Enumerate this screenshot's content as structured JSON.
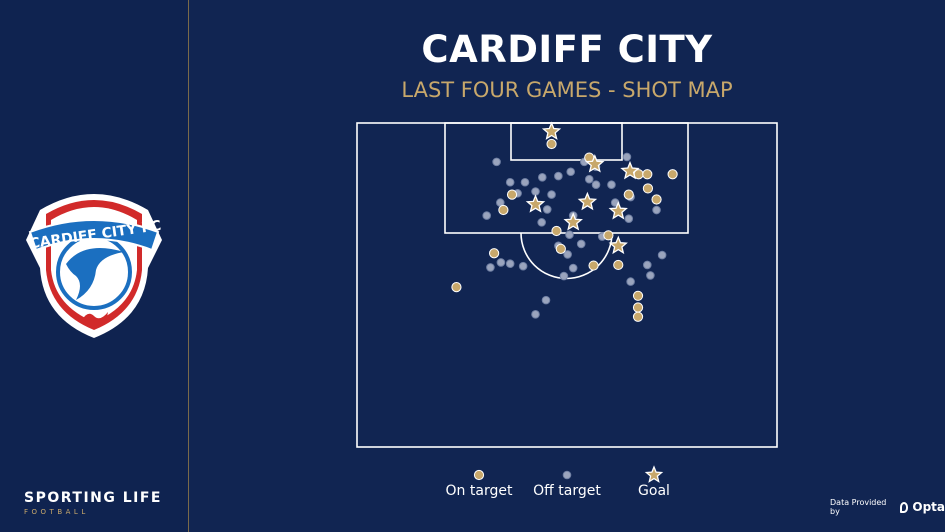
{
  "header": {
    "title": "CARDIFF CITY",
    "subtitle": "LAST FOUR GAMES - SHOT MAP"
  },
  "crest": {
    "text": "CARDIFF CITY FC"
  },
  "branding": {
    "name": "SPORTING LIFE",
    "sub": "FOOTBALL"
  },
  "provider": {
    "label": "Data Provided by",
    "name": "Opta"
  },
  "colors": {
    "on_target": "#c8a86b",
    "off_target": "#9aa4bd",
    "goal": "#c8a86b",
    "pitch_line": "#ffffff"
  },
  "legend": [
    {
      "key": "on_target",
      "label": "On target",
      "marker": "circle"
    },
    {
      "key": "off_target",
      "label": "Off target",
      "marker": "circle"
    },
    {
      "key": "goal",
      "label": "Goal",
      "marker": "star"
    }
  ],
  "chart_data": {
    "type": "scatter",
    "title": "",
    "xlim": [
      0,
      68
    ],
    "ylim": [
      0,
      52.5
    ],
    "series": [
      {
        "name": "Goal",
        "points": [
          [
            31.5,
            1.4
          ],
          [
            38.5,
            6.7
          ],
          [
            44.2,
            7.8
          ],
          [
            28.9,
            13.2
          ],
          [
            37.3,
            12.8
          ],
          [
            42.3,
            14.3
          ],
          [
            35.0,
            16.1
          ],
          [
            42.3,
            19.9
          ]
        ]
      },
      {
        "name": "On target",
        "points": [
          [
            31.5,
            3.4
          ],
          [
            37.6,
            5.6
          ],
          [
            45.6,
            8.3
          ],
          [
            47.0,
            8.3
          ],
          [
            51.1,
            8.3
          ],
          [
            47.1,
            10.6
          ],
          [
            25.1,
            11.6
          ],
          [
            44.0,
            11.6
          ],
          [
            48.5,
            12.4
          ],
          [
            23.7,
            14.1
          ],
          [
            32.3,
            17.5
          ],
          [
            40.7,
            18.2
          ],
          [
            33.0,
            20.4
          ],
          [
            22.2,
            21.1
          ],
          [
            38.3,
            23.1
          ],
          [
            42.3,
            23.0
          ],
          [
            16.1,
            26.6
          ],
          [
            45.5,
            28.0
          ],
          [
            45.5,
            29.9
          ],
          [
            45.5,
            31.4
          ]
        ]
      },
      {
        "name": "Off target",
        "points": [
          [
            22.6,
            6.3
          ],
          [
            36.8,
            6.3
          ],
          [
            43.7,
            5.5
          ],
          [
            38.7,
            7.1
          ],
          [
            34.6,
            7.9
          ],
          [
            30.0,
            8.8
          ],
          [
            32.6,
            8.6
          ],
          [
            37.6,
            9.1
          ],
          [
            24.8,
            9.6
          ],
          [
            27.2,
            9.6
          ],
          [
            38.7,
            10.0
          ],
          [
            41.2,
            10.0
          ],
          [
            26.0,
            11.4
          ],
          [
            28.9,
            11.1
          ],
          [
            31.5,
            11.6
          ],
          [
            44.3,
            12.0
          ],
          [
            23.2,
            12.9
          ],
          [
            41.8,
            12.9
          ],
          [
            30.8,
            14.0
          ],
          [
            48.5,
            14.1
          ],
          [
            21.0,
            15.0
          ],
          [
            35.0,
            15.0
          ],
          [
            44.0,
            15.5
          ],
          [
            29.9,
            16.1
          ],
          [
            34.4,
            18.1
          ],
          [
            39.7,
            18.4
          ],
          [
            36.3,
            19.6
          ],
          [
            32.6,
            19.9
          ],
          [
            34.1,
            21.3
          ],
          [
            49.4,
            21.4
          ],
          [
            23.3,
            22.6
          ],
          [
            24.8,
            22.8
          ],
          [
            26.9,
            23.2
          ],
          [
            35.0,
            23.5
          ],
          [
            47.0,
            23.0
          ],
          [
            21.6,
            23.4
          ],
          [
            33.5,
            24.8
          ],
          [
            44.3,
            25.7
          ],
          [
            30.6,
            28.7
          ],
          [
            28.9,
            31.0
          ],
          [
            47.5,
            24.7
          ]
        ]
      }
    ]
  }
}
